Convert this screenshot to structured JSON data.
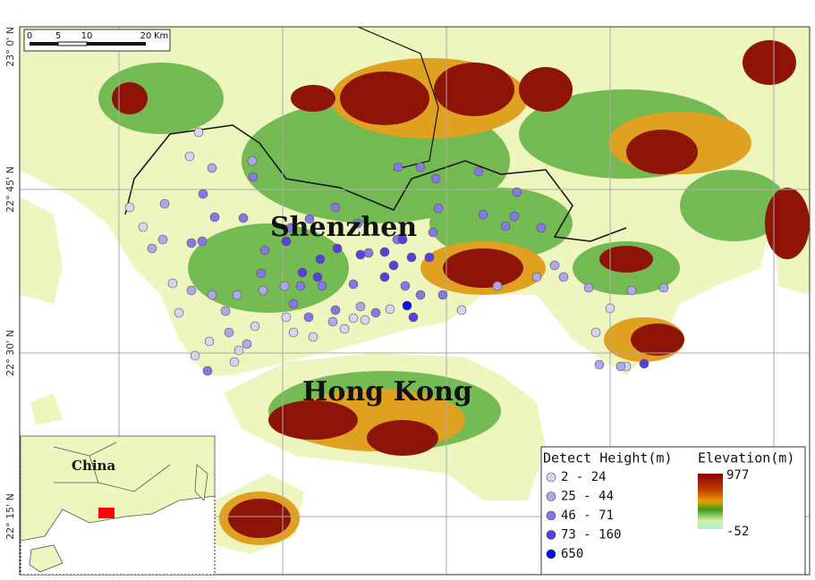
{
  "map": {
    "latitude_labels": [
      "23° 0' N",
      "22° 45' N",
      "22° 30' N",
      "22° 15' N"
    ],
    "scale_bar": {
      "ticks": [
        "0",
        "5",
        "10",
        "20"
      ],
      "unit": "Km"
    },
    "place_labels": [
      "Shenzhen",
      "Hong Kong"
    ],
    "inset_label": "China",
    "legend": {
      "title": "Detect Height(m)",
      "classes": [
        {
          "label": "2 - 24",
          "color": "#d6d4f2"
        },
        {
          "label": "25 - 44",
          "color": "#aea6ee"
        },
        {
          "label": "46 - 71",
          "color": "#8578e6"
        },
        {
          "label": "73 - 160",
          "color": "#5a3ee0"
        },
        {
          "label": "650",
          "color": "#0010f0"
        }
      ]
    },
    "elevation_legend": {
      "title": "Elevation(m)",
      "max_label": "977",
      "min_label": "-52"
    }
  }
}
